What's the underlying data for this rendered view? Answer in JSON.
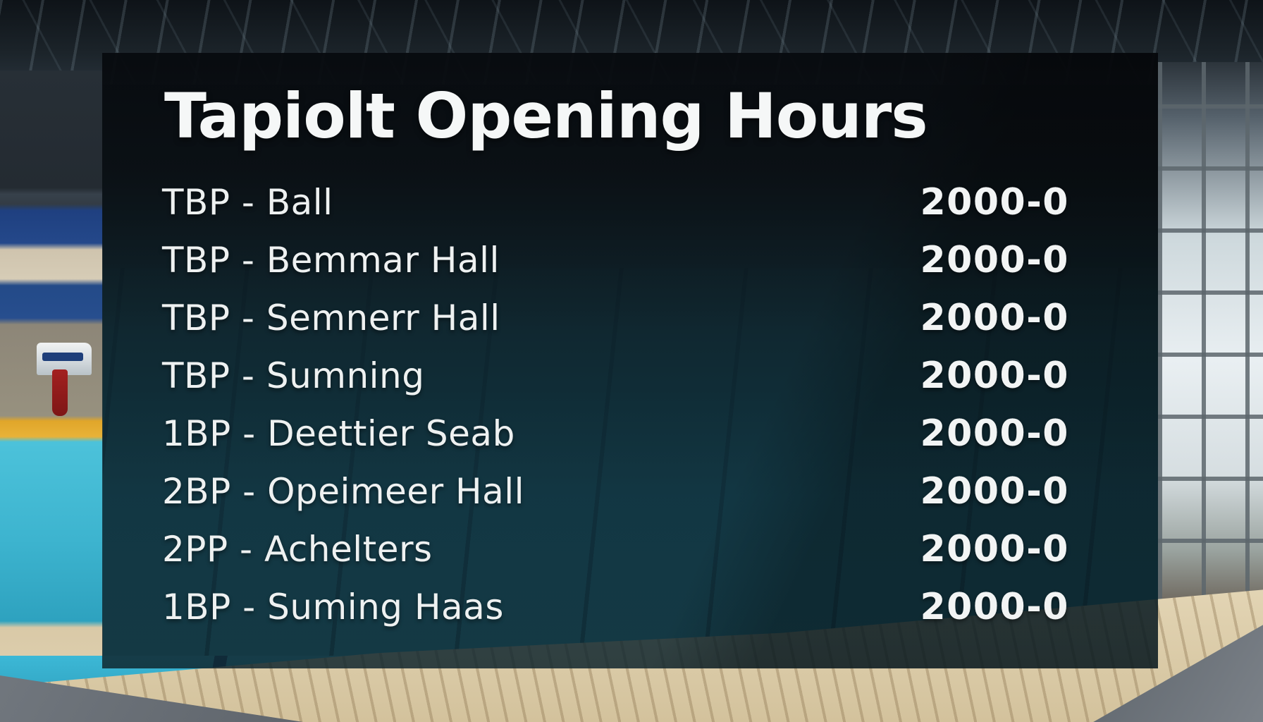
{
  "signage": {
    "title": "Tapiolt Opening Hours",
    "rows": [
      {
        "label": "TBP - Ball",
        "time": "2000-0"
      },
      {
        "label": "TBP - Bemmar Hall",
        "time": "2000-0"
      },
      {
        "label": "TBP - Semnerr Hall",
        "time": "2000-0"
      },
      {
        "label": "TBP - Sumning",
        "time": "2000-0"
      },
      {
        "label": "1BP - Deettier Seab",
        "time": "2000-0"
      },
      {
        "label": "2BP - Opeimeer Hall",
        "time": "2000-0"
      },
      {
        "label": "2PP - Achelters",
        "time": "2000-0"
      },
      {
        "label": "1BP - Suming Haas",
        "time": "2000-0"
      }
    ],
    "colors": {
      "panel_overlay": "rgba(10,16,20,0.86)",
      "text": "#f2f4f4",
      "water_bright": "#3cb8d6",
      "water_deep": "#1d5565",
      "deck_beige": "#d9c9a7",
      "navy_band": "#1e3f7a",
      "pole_yellow": "#e0a62a",
      "flag_red": "#a32020",
      "window_light": "#e9eff2",
      "floor_gray": "#6e747a"
    }
  }
}
